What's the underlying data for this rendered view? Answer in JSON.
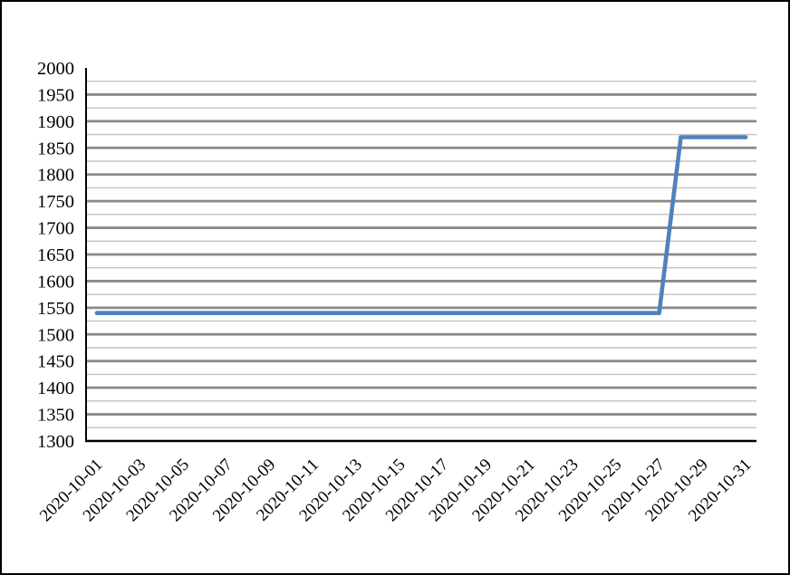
{
  "chart_data": {
    "type": "line",
    "title": "",
    "xlabel": "",
    "ylabel": "",
    "x": [
      "2020-10-01",
      "2020-10-02",
      "2020-10-03",
      "2020-10-04",
      "2020-10-05",
      "2020-10-06",
      "2020-10-07",
      "2020-10-08",
      "2020-10-09",
      "2020-10-10",
      "2020-10-11",
      "2020-10-12",
      "2020-10-13",
      "2020-10-14",
      "2020-10-15",
      "2020-10-16",
      "2020-10-17",
      "2020-10-18",
      "2020-10-19",
      "2020-10-20",
      "2020-10-21",
      "2020-10-22",
      "2020-10-23",
      "2020-10-24",
      "2020-10-25",
      "2020-10-26",
      "2020-10-27",
      "2020-10-28",
      "2020-10-29",
      "2020-10-30",
      "2020-10-31"
    ],
    "series": [
      {
        "name": "value",
        "color": "#4F81BD",
        "values": [
          1540,
          1540,
          1540,
          1540,
          1540,
          1540,
          1540,
          1540,
          1540,
          1540,
          1540,
          1540,
          1540,
          1540,
          1540,
          1540,
          1540,
          1540,
          1540,
          1540,
          1540,
          1540,
          1540,
          1540,
          1540,
          1540,
          1540,
          1870,
          1870,
          1870,
          1870
        ]
      }
    ],
    "ylim": [
      1300,
      2000
    ],
    "y_ticks": [
      1300,
      1350,
      1400,
      1450,
      1500,
      1550,
      1600,
      1650,
      1700,
      1750,
      1800,
      1850,
      1900,
      1950,
      2000
    ],
    "y_minor_step": 25,
    "x_label_every": 2,
    "x_tick_labels_shown": [
      "2020-10-01",
      "2020-10-03",
      "2020-10-05",
      "2020-10-07",
      "2020-10-09",
      "2020-10-11",
      "2020-10-13",
      "2020-10-15",
      "2020-10-17",
      "2020-10-19",
      "2020-10-21",
      "2020-10-23",
      "2020-10-25",
      "2020-10-27",
      "2020-10-29",
      "2020-10-31"
    ],
    "grid": true,
    "legend": "none",
    "colors": {
      "line": "#4F81BD",
      "major_grid": "#898989",
      "minor_grid": "#C3C3C3",
      "axis": "#000000",
      "background": "#FFFFFF",
      "border": "#000000",
      "text": "#000000"
    }
  }
}
